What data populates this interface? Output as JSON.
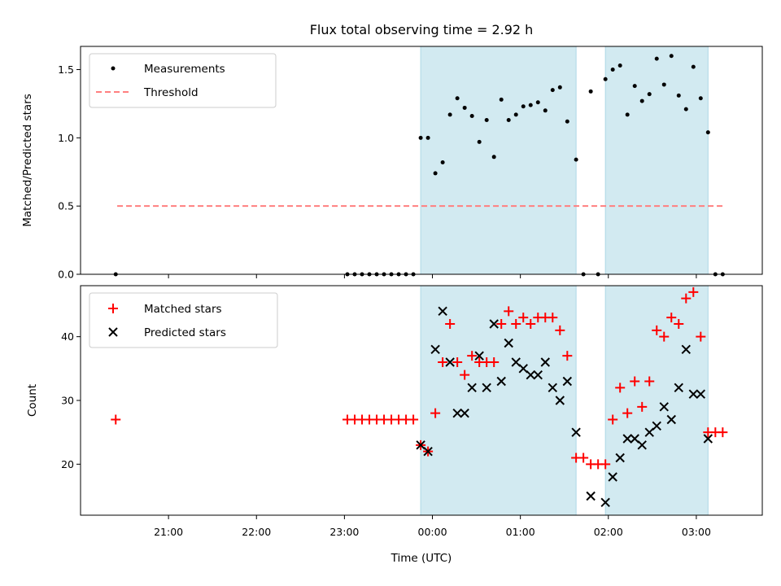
{
  "chart_data": [
    {
      "type": "scatter",
      "title": "Flux total observing time = 2.92 h",
      "xlabel": "",
      "ylabel": "Matched/Predicted stars",
      "ylim": [
        0,
        1.67
      ],
      "yticks": [
        "0.0",
        "0.5",
        "1.0",
        "1.5"
      ],
      "ytick_values": [
        0,
        0.5,
        1.0,
        1.5
      ],
      "legend": {
        "placement": "top-left",
        "entries": [
          "Measurements",
          "Threshold"
        ]
      },
      "colors": {
        "measurements": "#000000",
        "threshold": "#ff7f7f",
        "span": "#add8e6"
      },
      "threshold": {
        "value": 0.5,
        "x_start": "20:25",
        "x_end": "03:20"
      },
      "shaded_spans": [
        [
          "23:52",
          "01:38"
        ],
        [
          "01:58",
          "03:08"
        ]
      ],
      "series": [
        {
          "name": "Measurements",
          "x": [
            "20:24",
            "23:02",
            "23:07",
            "23:12",
            "23:17",
            "23:22",
            "23:27",
            "23:32",
            "23:37",
            "23:42",
            "23:47",
            "23:52",
            "23:57",
            "00:02",
            "00:07",
            "00:12",
            "00:17",
            "00:22",
            "00:27",
            "00:32",
            "00:37",
            "00:42",
            "00:47",
            "00:52",
            "00:57",
            "01:02",
            "01:07",
            "01:12",
            "01:17",
            "01:22",
            "01:27",
            "01:32",
            "01:38",
            "01:43",
            "01:48",
            "01:53",
            "01:58",
            "02:03",
            "02:08",
            "02:13",
            "02:18",
            "02:23",
            "02:28",
            "02:33",
            "02:38",
            "02:43",
            "02:48",
            "02:53",
            "02:58",
            "03:03",
            "03:08",
            "03:13",
            "03:18"
          ],
          "y": [
            0,
            0,
            0,
            0,
            0,
            0,
            0,
            0,
            0,
            0,
            0,
            1.0,
            1.0,
            0.74,
            0.82,
            1.17,
            1.29,
            1.22,
            1.16,
            0.97,
            1.13,
            0.86,
            1.28,
            1.13,
            1.17,
            1.23,
            1.24,
            1.26,
            1.2,
            1.35,
            1.37,
            1.12,
            0.84,
            0,
            1.34,
            0,
            1.43,
            1.5,
            1.53,
            1.17,
            1.38,
            1.27,
            1.32,
            1.58,
            1.39,
            1.6,
            1.31,
            1.21,
            1.52,
            1.29,
            1.04,
            0,
            0
          ]
        }
      ]
    },
    {
      "type": "scatter",
      "title": "",
      "xlabel": "Time (UTC)",
      "ylabel": "Count",
      "ylim": [
        12,
        48
      ],
      "yticks": [
        "20",
        "30",
        "40"
      ],
      "ytick_values": [
        20,
        30,
        40
      ],
      "xlim": [
        "20:00",
        "03:45"
      ],
      "xticks": [
        "21:00",
        "22:00",
        "23:00",
        "00:00",
        "01:00",
        "02:00",
        "03:00"
      ],
      "legend": {
        "placement": "top-left",
        "entries": [
          "Matched stars",
          "Predicted stars"
        ]
      },
      "colors": {
        "matched": "#ff0000",
        "predicted": "#000000",
        "span": "#add8e6"
      },
      "shaded_spans": [
        [
          "23:52",
          "01:38"
        ],
        [
          "01:58",
          "03:08"
        ]
      ],
      "series": [
        {
          "name": "Matched stars",
          "marker": "plus",
          "x": [
            "20:24",
            "23:02",
            "23:07",
            "23:12",
            "23:17",
            "23:22",
            "23:27",
            "23:32",
            "23:37",
            "23:42",
            "23:47",
            "23:52",
            "23:57",
            "00:02",
            "00:07",
            "00:12",
            "00:17",
            "00:22",
            "00:27",
            "00:32",
            "00:37",
            "00:42",
            "00:47",
            "00:52",
            "00:57",
            "01:02",
            "01:07",
            "01:12",
            "01:17",
            "01:22",
            "01:27",
            "01:32",
            "01:38",
            "01:43",
            "01:48",
            "01:53",
            "01:58",
            "02:03",
            "02:08",
            "02:13",
            "02:18",
            "02:23",
            "02:28",
            "02:33",
            "02:38",
            "02:43",
            "02:48",
            "02:53",
            "02:58",
            "03:03",
            "03:08",
            "03:13",
            "03:18"
          ],
          "y": [
            27,
            27,
            27,
            27,
            27,
            27,
            27,
            27,
            27,
            27,
            27,
            23,
            22,
            28,
            36,
            42,
            36,
            34,
            37,
            36,
            36,
            36,
            42,
            44,
            42,
            43,
            42,
            43,
            43,
            43,
            41,
            37,
            21,
            21,
            20,
            20,
            20,
            27,
            32,
            28,
            33,
            29,
            33,
            41,
            40,
            43,
            42,
            46,
            47,
            40,
            25,
            25,
            25
          ]
        },
        {
          "name": "Predicted stars",
          "marker": "x",
          "x": [
            "23:52",
            "23:57",
            "00:02",
            "00:07",
            "00:12",
            "00:17",
            "00:22",
            "00:27",
            "00:32",
            "00:37",
            "00:42",
            "00:47",
            "00:52",
            "00:57",
            "01:02",
            "01:07",
            "01:12",
            "01:17",
            "01:22",
            "01:27",
            "01:32",
            "01:38",
            "01:48",
            "01:58",
            "02:03",
            "02:08",
            "02:13",
            "02:18",
            "02:23",
            "02:28",
            "02:33",
            "02:38",
            "02:43",
            "02:48",
            "02:53",
            "02:58",
            "03:03",
            "03:08"
          ],
          "y": [
            23,
            22,
            38,
            44,
            36,
            28,
            28,
            32,
            37,
            32,
            42,
            33,
            39,
            36,
            35,
            34,
            34,
            36,
            32,
            30,
            33,
            25,
            15,
            14,
            18,
            21,
            24,
            24,
            23,
            25,
            26,
            29,
            27,
            32,
            38,
            31,
            31,
            24
          ]
        }
      ]
    }
  ]
}
